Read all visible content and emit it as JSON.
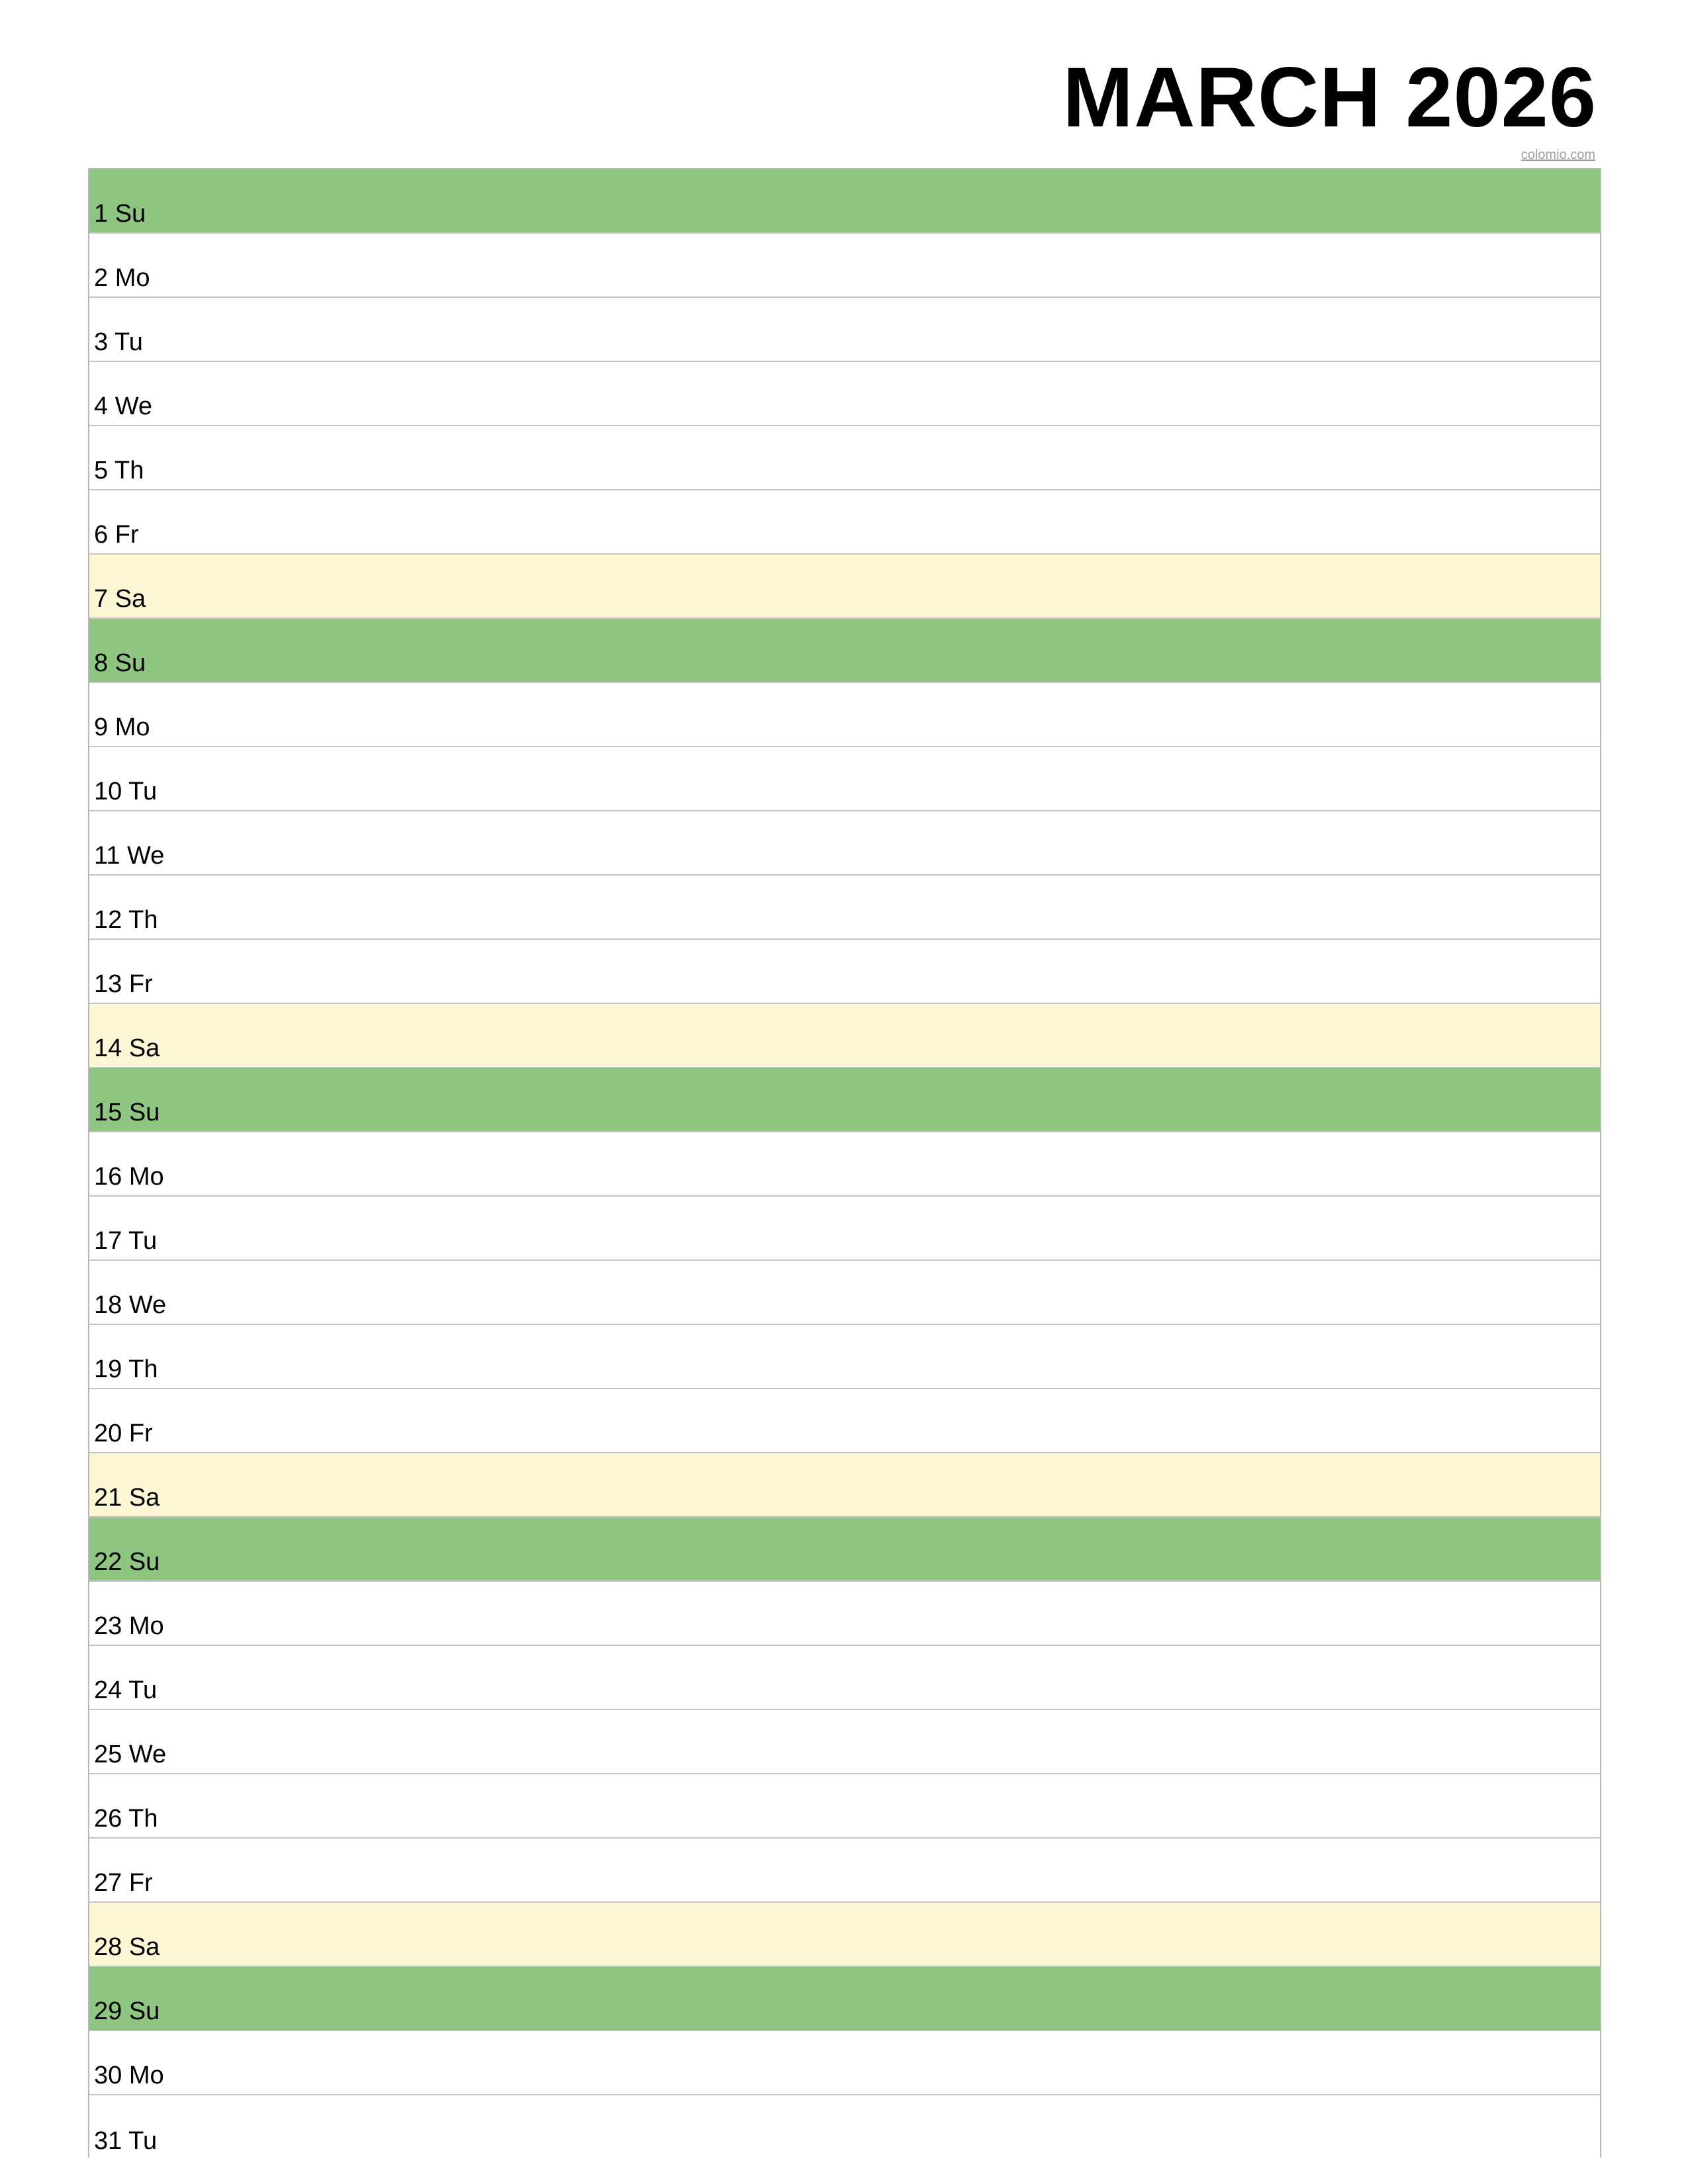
{
  "header": {
    "title": "MARCH 2026",
    "credit": "colomio.com"
  },
  "colors": {
    "sunday": "#8dc581",
    "saturday": "#fdf7d6",
    "weekday": "#ffffff",
    "grid_line": "#c4c4c4"
  },
  "days": [
    {
      "label": "1 Su",
      "type": "sun"
    },
    {
      "label": "2 Mo",
      "type": "weekday"
    },
    {
      "label": "3 Tu",
      "type": "weekday"
    },
    {
      "label": "4 We",
      "type": "weekday"
    },
    {
      "label": "5 Th",
      "type": "weekday"
    },
    {
      "label": "6 Fr",
      "type": "weekday"
    },
    {
      "label": "7 Sa",
      "type": "sat"
    },
    {
      "label": "8 Su",
      "type": "sun"
    },
    {
      "label": "9 Mo",
      "type": "weekday"
    },
    {
      "label": "10 Tu",
      "type": "weekday"
    },
    {
      "label": "11 We",
      "type": "weekday"
    },
    {
      "label": "12 Th",
      "type": "weekday"
    },
    {
      "label": "13 Fr",
      "type": "weekday"
    },
    {
      "label": "14 Sa",
      "type": "sat"
    },
    {
      "label": "15 Su",
      "type": "sun"
    },
    {
      "label": "16 Mo",
      "type": "weekday"
    },
    {
      "label": "17 Tu",
      "type": "weekday"
    },
    {
      "label": "18 We",
      "type": "weekday"
    },
    {
      "label": "19 Th",
      "type": "weekday"
    },
    {
      "label": "20 Fr",
      "type": "weekday"
    },
    {
      "label": "21 Sa",
      "type": "sat"
    },
    {
      "label": "22 Su",
      "type": "sun"
    },
    {
      "label": "23 Mo",
      "type": "weekday"
    },
    {
      "label": "24 Tu",
      "type": "weekday"
    },
    {
      "label": "25 We",
      "type": "weekday"
    },
    {
      "label": "26 Th",
      "type": "weekday"
    },
    {
      "label": "27 Fr",
      "type": "weekday"
    },
    {
      "label": "28 Sa",
      "type": "sat"
    },
    {
      "label": "29 Su",
      "type": "sun"
    },
    {
      "label": "30 Mo",
      "type": "weekday"
    },
    {
      "label": "31 Tu",
      "type": "weekday"
    }
  ]
}
